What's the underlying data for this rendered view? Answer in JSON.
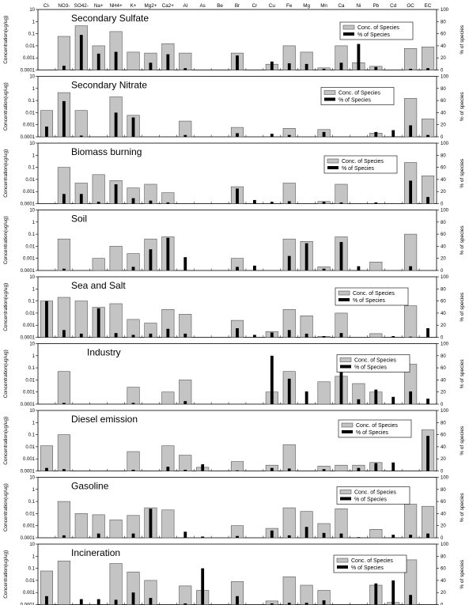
{
  "axis_label_left": "Concentration(ug/ug)",
  "axis_label_right": "% of species",
  "legend": {
    "conc": "Conc. of Species",
    "pct": "% of Species"
  },
  "style": {
    "bar_fill": "#c4c4c4",
    "bar_stroke": "#555555",
    "pct_color": "#000000"
  },
  "chart_data": {
    "type": "bar",
    "species": [
      "Cl-",
      "NO3-",
      "SO42-",
      "Na+",
      "NH4+",
      "K+",
      "Mg2+",
      "Ca2+",
      "Al",
      "As",
      "Be",
      "Br",
      "Cr",
      "Cu",
      "Fe",
      "Mg",
      "Mn",
      "Ca",
      "Ni",
      "Pb",
      "Cd",
      "OC",
      "EC"
    ],
    "left_yscale": "log",
    "left_ylim": [
      0.0001,
      10
    ],
    "left_ticks": [
      "10",
      "1",
      "0.1",
      "0.01",
      "0.001",
      "0.0001"
    ],
    "right_ylim": [
      0,
      100
    ],
    "right_ticks": [
      "100",
      "80",
      "60",
      "40",
      "20",
      "0"
    ],
    "panels": [
      {
        "title": "Secondary Sulfate",
        "conc": [
          null,
          0.06,
          0.45,
          0.01,
          0.15,
          0.003,
          0.0025,
          0.015,
          0.0025,
          null,
          null,
          0.0025,
          null,
          0.0003,
          0.01,
          0.003,
          0.00015,
          0.01,
          0.0004,
          0.0002,
          null,
          0.006,
          0.008
        ],
        "pct": [
          0,
          7,
          58,
          27,
          30,
          0,
          12,
          26,
          3,
          0,
          0,
          24,
          0,
          14,
          11,
          10,
          2,
          12,
          43,
          5,
          0,
          2,
          3
        ]
      },
      {
        "title": "Secondary Nitrate",
        "conc": [
          0.015,
          0.45,
          0.015,
          null,
          0.2,
          0.006,
          null,
          null,
          0.002,
          null,
          null,
          0.0006,
          null,
          null,
          0.0005,
          null,
          0.0004,
          null,
          null,
          0.0002,
          null,
          0.15,
          0.003
        ],
        "pct": [
          17,
          59,
          2,
          0,
          40,
          32,
          0,
          0,
          3,
          0,
          0,
          6,
          0,
          5,
          3,
          0,
          8,
          0,
          0,
          8,
          11,
          19,
          3
        ]
      },
      {
        "title": "Biomass burning",
        "conc": [
          null,
          0.1,
          0.005,
          0.025,
          0.008,
          0.002,
          0.004,
          0.0008,
          null,
          null,
          null,
          0.0025,
          null,
          null,
          0.005,
          null,
          0.00015,
          0.004,
          null,
          null,
          null,
          0.25,
          0.02
        ],
        "pct": [
          0,
          16,
          16,
          3,
          32,
          9,
          5,
          2,
          0,
          0,
          0,
          25,
          6,
          3,
          4,
          0,
          3,
          2,
          0,
          2,
          0,
          38,
          11
        ]
      },
      {
        "title": "Soil",
        "conc": [
          null,
          0.04,
          null,
          0.001,
          0.01,
          0.0025,
          0.04,
          0.06,
          0.0001,
          null,
          null,
          0.001,
          null,
          null,
          0.04,
          0.025,
          0.0002,
          0.06,
          null,
          0.0005,
          null,
          0.1,
          null
        ],
        "pct": [
          0,
          3,
          0,
          0,
          0,
          6,
          35,
          54,
          22,
          0,
          0,
          6,
          8,
          0,
          24,
          45,
          3,
          47,
          7,
          0,
          0,
          7,
          0
        ]
      },
      {
        "title": "Sea and Salt",
        "conc": [
          0.1,
          0.2,
          0.1,
          0.03,
          0.06,
          0.003,
          0.0015,
          0.02,
          0.008,
          null,
          null,
          0.0025,
          null,
          0.0003,
          0.02,
          0.006,
          0.00012,
          0.01,
          null,
          0.0002,
          null,
          0.04,
          null
        ],
        "pct": [
          60,
          12,
          6,
          48,
          7,
          4,
          6,
          14,
          6,
          0,
          0,
          15,
          4,
          8,
          12,
          6,
          2,
          7,
          0,
          0,
          2,
          1,
          15
        ]
      },
      {
        "title": "Industry",
        "conc": [
          null,
          0.05,
          null,
          null,
          null,
          0.0025,
          null,
          0.001,
          0.01,
          null,
          null,
          null,
          null,
          0.001,
          0.05,
          null,
          0.007,
          0.02,
          0.005,
          0.001,
          null,
          0.2,
          null
        ],
        "pct": [
          0,
          2,
          0,
          0,
          0,
          2,
          0,
          0,
          5,
          0,
          0,
          0,
          0,
          80,
          42,
          21,
          0,
          64,
          8,
          24,
          12,
          21,
          9
        ]
      },
      {
        "title": "Diesel emission",
        "conc": [
          0.012,
          0.1,
          null,
          null,
          null,
          0.004,
          null,
          0.012,
          0.002,
          0.0002,
          null,
          0.0006,
          null,
          0.0003,
          0.015,
          null,
          0.00025,
          0.0003,
          0.0003,
          0.0005,
          null,
          null,
          0.25
        ],
        "pct": [
          5,
          3,
          0,
          0,
          0,
          2,
          0,
          7,
          2,
          11,
          0,
          1,
          0,
          5,
          4,
          0,
          3,
          0,
          5,
          13,
          14,
          0,
          58
        ]
      },
      {
        "title": "Gasoline",
        "conc": [
          null,
          0.1,
          0.01,
          0.008,
          0.003,
          0.007,
          0.03,
          0.02,
          null,
          null,
          null,
          0.001,
          null,
          0.0006,
          0.03,
          0.015,
          0.0015,
          0.025,
          0.0001,
          0.0005,
          null,
          0.06,
          0.04
        ],
        "pct": [
          0,
          4,
          0,
          7,
          0,
          7,
          48,
          0,
          10,
          2,
          0,
          3,
          0,
          12,
          4,
          18,
          8,
          7,
          1,
          0,
          5,
          5,
          7
        ]
      },
      {
        "title": "Incineration",
        "conc": [
          0.06,
          0.4,
          null,
          null,
          0.25,
          0.05,
          0.01,
          null,
          0.0035,
          0.0015,
          null,
          0.008,
          null,
          0.0002,
          0.02,
          0.004,
          0.0015,
          null,
          null,
          0.004,
          0.00015,
          0.5,
          null
        ],
        "pct": [
          14,
          0,
          9,
          9,
          8,
          20,
          11,
          0,
          2,
          60,
          0,
          14,
          0,
          2,
          3,
          3,
          7,
          0,
          0,
          35,
          40,
          16,
          0
        ]
      }
    ]
  }
}
